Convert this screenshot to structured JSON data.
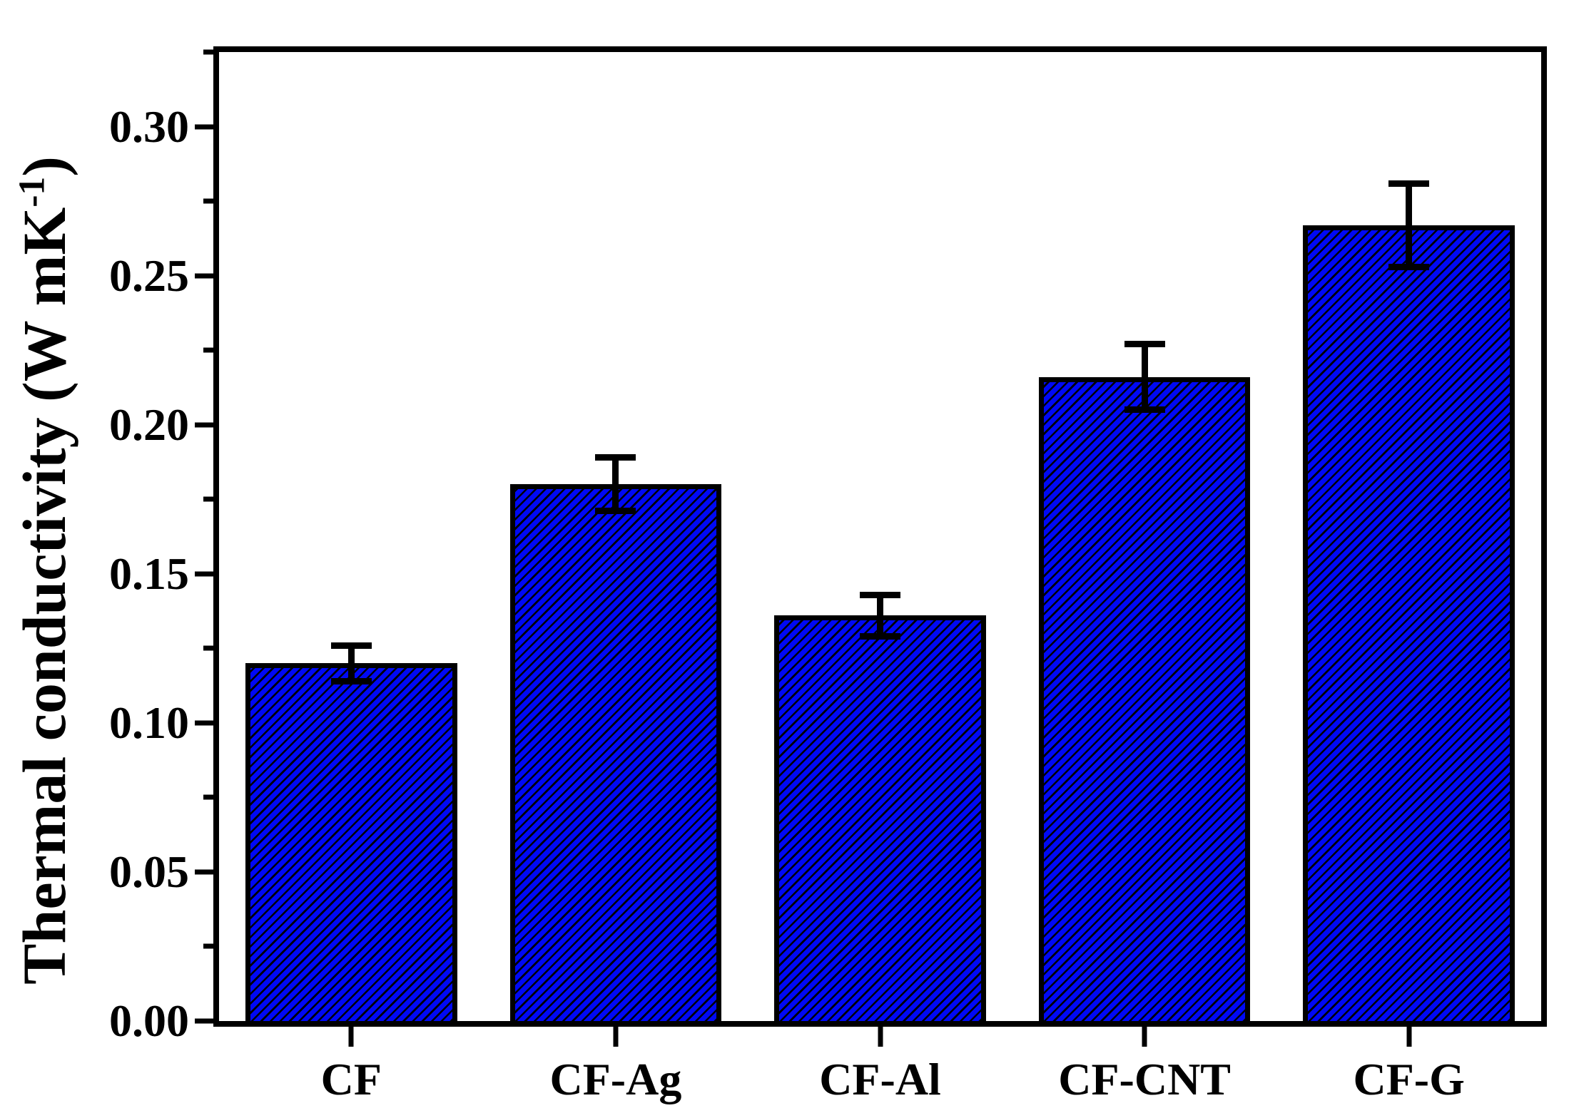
{
  "chart_data": {
    "type": "bar",
    "title": "",
    "categories": [
      "CF",
      "CF-Ag",
      "CF-Al",
      "CF-CNT",
      "CF-G"
    ],
    "values": [
      0.12,
      0.18,
      0.136,
      0.216,
      0.267
    ],
    "errors": [
      0.006,
      0.009,
      0.007,
      0.011,
      0.014
    ],
    "xlabel": "",
    "ylabel": "Thermal conductivity (W mK-1)",
    "ylabel_base": "Thermal conductivity (W mK",
    "ylabel_sup": "-1",
    "ylabel_close": ")",
    "ylim": [
      0,
      0.325
    ],
    "ytick_major_step": 0.05,
    "ytick_minor_step": 0.025,
    "ytick_labels": [
      "0.00",
      "0.05",
      "0.10",
      "0.15",
      "0.20",
      "0.25",
      "0.30"
    ],
    "grid": false,
    "legend_position": "none",
    "bar_fill_color": "#0009f5",
    "bar_hatch": "diagonal-forward",
    "bar_edge_color": "#000000",
    "error_bar_color": "#000000",
    "axis_color": "#000000",
    "background_color": "#ffffff"
  }
}
